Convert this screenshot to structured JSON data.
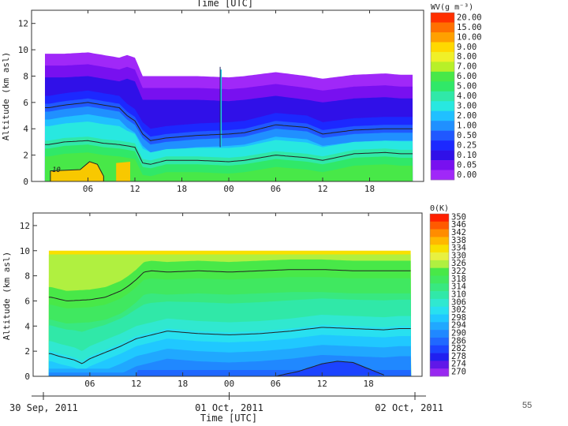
{
  "slide_number": "55",
  "chart_data": [
    {
      "type": "heatmap",
      "top_title": "Time [UTC]",
      "ylabel": "Altitude (km asl)",
      "ylim": [
        0,
        13
      ],
      "y_ticks": [
        "0",
        "2",
        "4",
        "6",
        "8",
        "10",
        "12"
      ],
      "x_ticks": [
        "06",
        "12",
        "18",
        "00",
        "06",
        "12",
        "18"
      ],
      "x_tick_hours": [
        6,
        12,
        18,
        24,
        30,
        36,
        42
      ],
      "x_range_hours": [
        0,
        48
      ],
      "contour_label": "10",
      "colorbar": {
        "title": "WV(g m⁻³)",
        "levels": [
          "20.00",
          "15.00",
          "10.00",
          "9.00",
          "8.00",
          "7.00",
          "6.00",
          "5.00",
          "4.00",
          "3.00",
          "2.00",
          "1.00",
          "0.50",
          "0.25",
          "0.10",
          "0.05",
          "0.00"
        ],
        "colors": [
          "#ff3000",
          "#ff7000",
          "#ffa000",
          "#ffd800",
          "#f0f028",
          "#b8f028",
          "#48e848",
          "#30e868",
          "#30e8a8",
          "#28e8e0",
          "#20c0ff",
          "#2090ff",
          "#2058ff",
          "#1c28ff",
          "#3010e8",
          "#7810f0",
          "#a028f8"
        ]
      },
      "data_top_km_series": {
        "hours": [
          1,
          3,
          6,
          8,
          10,
          11,
          12,
          13,
          16,
          20,
          24,
          26,
          30,
          34,
          36,
          40,
          44,
          46
        ],
        "values": [
          9.7,
          9.7,
          9.8,
          9.6,
          9.4,
          9.6,
          9.4,
          8.0,
          8.0,
          8.0,
          7.9,
          8.0,
          8.3,
          8.0,
          7.8,
          8.1,
          8.2,
          8.1
        ]
      },
      "contour_upper_km": {
        "hours": [
          1,
          3,
          6,
          8,
          10,
          11,
          12,
          13,
          14,
          16,
          20,
          24,
          26,
          30,
          34,
          36,
          40,
          44,
          46
        ],
        "values": [
          5.6,
          5.8,
          6.0,
          5.8,
          5.6,
          5.0,
          4.6,
          3.6,
          3.1,
          3.3,
          3.5,
          3.6,
          3.7,
          4.3,
          4.1,
          3.6,
          3.9,
          4.0,
          4.0
        ]
      },
      "contour_lower_km": {
        "hours": [
          1,
          3,
          6,
          8,
          10,
          11,
          12,
          13,
          14,
          16,
          20,
          24,
          26,
          30,
          34,
          36,
          40,
          44,
          46
        ],
        "values": [
          2.8,
          3.0,
          3.1,
          2.9,
          2.8,
          2.7,
          2.6,
          1.4,
          1.3,
          1.6,
          1.6,
          1.5,
          1.6,
          2.0,
          1.8,
          1.6,
          2.1,
          2.2,
          2.1
        ]
      }
    },
    {
      "type": "heatmap",
      "ylabel": "Altitude (km asl)",
      "ylim": [
        0,
        13
      ],
      "y_ticks": [
        "0",
        "2",
        "4",
        "6",
        "8",
        "10",
        "12"
      ],
      "x_ticks": [
        "06",
        "12",
        "18",
        "00",
        "06",
        "12",
        "18"
      ],
      "x_tick_hours": [
        6,
        12,
        18,
        24,
        30,
        36,
        42
      ],
      "x_range_hours": [
        0,
        48
      ],
      "colorbar": {
        "title": "Θ(K)",
        "levels": [
          "350",
          "346",
          "342",
          "338",
          "334",
          "330",
          "326",
          "322",
          "318",
          "314",
          "310",
          "306",
          "302",
          "298",
          "294",
          "290",
          "286",
          "282",
          "278",
          "274",
          "270"
        ],
        "colors": [
          "#ff2000",
          "#ff5a00",
          "#ff8c00",
          "#ffb800",
          "#f8e000",
          "#e8f040",
          "#b0f040",
          "#48e848",
          "#40e860",
          "#38e880",
          "#30e8a8",
          "#30e8d0",
          "#28e0f0",
          "#20c8ff",
          "#20a8ff",
          "#2088ff",
          "#2068ff",
          "#1c44ff",
          "#2020f0",
          "#6018e8",
          "#9828f0"
        ]
      },
      "contour_upper_km": {
        "hours": [
          1,
          3,
          6,
          8,
          10,
          11,
          12,
          13,
          14,
          16,
          20,
          24,
          28,
          32,
          36,
          40,
          44,
          46
        ],
        "values": [
          6.3,
          6.0,
          6.1,
          6.3,
          6.8,
          7.2,
          7.7,
          8.3,
          8.4,
          8.3,
          8.4,
          8.3,
          8.4,
          8.5,
          8.5,
          8.4,
          8.4,
          8.4
        ]
      },
      "contour_lower_km": {
        "hours": [
          1,
          2,
          4,
          5,
          6,
          8,
          10,
          12,
          14,
          16,
          20,
          24,
          28,
          32,
          36,
          40,
          44,
          46
        ],
        "values": [
          1.8,
          1.6,
          1.3,
          1.0,
          1.4,
          1.9,
          2.4,
          3.0,
          3.3,
          3.6,
          3.4,
          3.3,
          3.4,
          3.6,
          3.9,
          3.8,
          3.7,
          3.8
        ]
      },
      "bottom_contour_km": {
        "hours": [
          30,
          33,
          36,
          38,
          40,
          42,
          44
        ],
        "values": [
          0.0,
          0.4,
          1.0,
          1.2,
          1.1,
          0.6,
          0.1
        ]
      },
      "date_labels": [
        "30 Sep, 2011",
        "01 Oct, 2011",
        "02 Oct, 2011"
      ],
      "date_hours": [
        0,
        24,
        48
      ],
      "bottom_title": "Time [UTC]"
    }
  ]
}
